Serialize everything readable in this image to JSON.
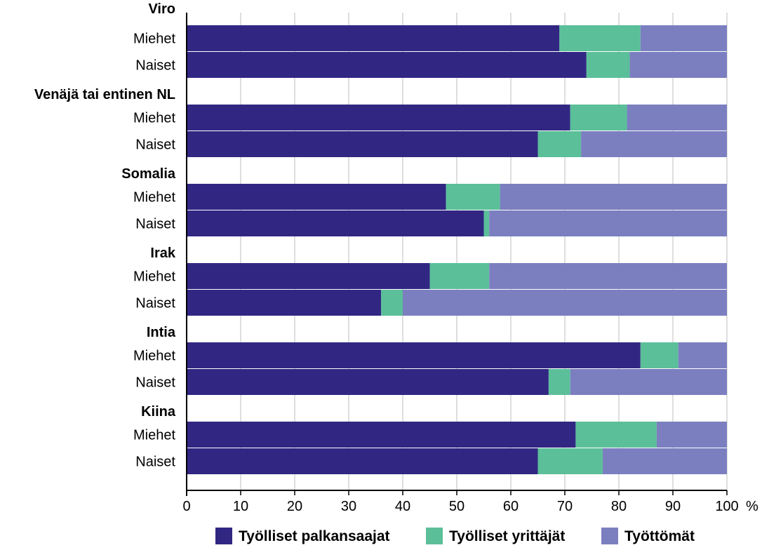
{
  "chart_data": {
    "type": "bar",
    "orientation": "horizontal",
    "stacked": true,
    "colors": [
      "#312783",
      "#5bbf9a",
      "#7b7fc0"
    ],
    "groups": [
      {
        "name": "Viro",
        "rows": [
          {
            "label": "Miehet",
            "values": [
              69,
              15,
              16
            ]
          },
          {
            "label": "Naiset",
            "values": [
              74,
              8,
              18
            ]
          }
        ]
      },
      {
        "name": "Venäjä tai entinen NL",
        "rows": [
          {
            "label": "Miehet",
            "values": [
              71,
              10.5,
              18.5
            ]
          },
          {
            "label": "Naiset",
            "values": [
              65,
              8,
              27
            ]
          }
        ]
      },
      {
        "name": "Somalia",
        "rows": [
          {
            "label": "Miehet",
            "values": [
              48,
              10,
              42
            ]
          },
          {
            "label": "Naiset",
            "values": [
              55,
              1,
              44
            ]
          }
        ]
      },
      {
        "name": "Irak",
        "rows": [
          {
            "label": "Miehet",
            "values": [
              45,
              11,
              44
            ]
          },
          {
            "label": "Naiset",
            "values": [
              36,
              4,
              60
            ]
          }
        ]
      },
      {
        "name": "Intia",
        "rows": [
          {
            "label": "Miehet",
            "values": [
              84,
              7,
              9
            ]
          },
          {
            "label": "Naiset",
            "values": [
              67,
              4,
              29
            ]
          }
        ]
      },
      {
        "name": "Kiina",
        "rows": [
          {
            "label": "Miehet",
            "values": [
              72,
              15,
              13
            ]
          },
          {
            "label": "Naiset",
            "values": [
              65,
              12,
              23
            ]
          }
        ]
      }
    ],
    "series": [
      {
        "name": "Työlliset palkansaajat"
      },
      {
        "name": "Työlliset yrittäjät"
      },
      {
        "name": "Työttömät"
      }
    ],
    "xlim": [
      0,
      100
    ],
    "xticks": [
      "0",
      "10",
      "20",
      "30",
      "40",
      "50",
      "60",
      "70",
      "80",
      "90",
      "100"
    ],
    "x_unit": "%",
    "grid": true,
    "legend": "bottom"
  }
}
